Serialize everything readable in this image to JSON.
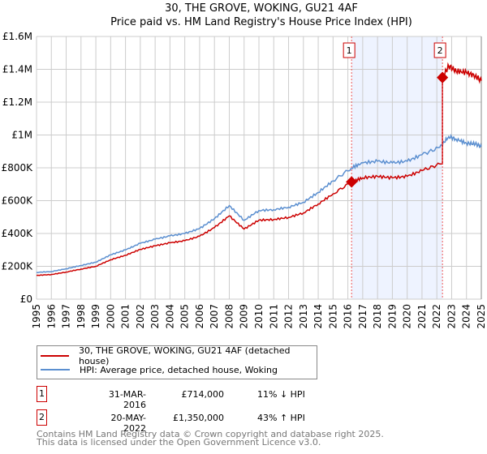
{
  "chart_data": {
    "type": "line",
    "title": [
      "30, THE GROVE, WOKING, GU21 4AF",
      "Price paid vs. HM Land Registry's House Price Index (HPI)"
    ],
    "xlim": [
      1995,
      2025
    ],
    "ylim": [
      0,
      1600000
    ],
    "x_ticks": [
      "1995",
      "1996",
      "1997",
      "1998",
      "1999",
      "2000",
      "2001",
      "2002",
      "2003",
      "2004",
      "2005",
      "2006",
      "2007",
      "2008",
      "2009",
      "2010",
      "2011",
      "2012",
      "2013",
      "2014",
      "2015",
      "2016",
      "2017",
      "2018",
      "2019",
      "2020",
      "2021",
      "2022",
      "2023",
      "2024",
      "2025"
    ],
    "y_ticks": [
      {
        "v": 0,
        "label": "£0"
      },
      {
        "v": 200000,
        "label": "£200K"
      },
      {
        "v": 400000,
        "label": "£400K"
      },
      {
        "v": 600000,
        "label": "£600K"
      },
      {
        "v": 800000,
        "label": "£800K"
      },
      {
        "v": 1000000,
        "label": "£1M"
      },
      {
        "v": 1200000,
        "label": "£1.2M"
      },
      {
        "v": 1400000,
        "label": "£1.4M"
      },
      {
        "v": 1600000,
        "label": "£1.6M"
      }
    ],
    "grid": true,
    "series": [
      {
        "name": "30, THE GROVE, WOKING, GU21 4AF (detached house)",
        "color": "#cc0000",
        "x": [
          1995,
          1996,
          1997,
          1998,
          1999,
          2000,
          2001,
          2002,
          2003,
          2004,
          2005,
          2006,
          2007,
          2008,
          2009,
          2010,
          2011,
          2012,
          2013,
          2014,
          2015,
          2016.25,
          2017,
          2018,
          2019,
          2020,
          2021,
          2022.2,
          2022.38,
          2022.38,
          2022.8,
          2023.3,
          2024,
          2024.6,
          2025
        ],
        "y": [
          145000,
          150000,
          165000,
          183000,
          200000,
          240000,
          267000,
          303000,
          325000,
          343000,
          356000,
          383000,
          436000,
          507000,
          427000,
          481000,
          485000,
          498000,
          525000,
          580000,
          641000,
          714000,
          739000,
          748000,
          739000,
          748000,
          783000,
          823000,
          823000,
          1350000,
          1420000,
          1390000,
          1380000,
          1360000,
          1330000
        ]
      },
      {
        "name": "HPI: Average price, detached house, Woking",
        "color": "#5b8fd0",
        "x": [
          1995,
          1996,
          1997,
          1998,
          1999,
          2000,
          2001,
          2002,
          2003,
          2004,
          2005,
          2006,
          2007,
          2008,
          2009,
          2010,
          2011,
          2012,
          2013,
          2014,
          2015,
          2016.25,
          2017,
          2018,
          2019,
          2020,
          2021,
          2022.2,
          2022.8,
          2023.3,
          2024,
          2024.6,
          2025
        ],
        "y": [
          163000,
          168000,
          185000,
          205000,
          225000,
          270000,
          300000,
          340000,
          365000,
          385000,
          400000,
          430000,
          490000,
          570000,
          480000,
          540000,
          545000,
          560000,
          590000,
          650000,
          720000,
          800000,
          830000,
          840000,
          830000,
          840000,
          880000,
          925000,
          990000,
          975000,
          950000,
          945000,
          930000
        ]
      }
    ],
    "sales": [
      {
        "label": "1",
        "x": 2016.25,
        "y": 714000
      },
      {
        "label": "2",
        "x": 2022.38,
        "y": 1350000
      }
    ],
    "shaded_range": [
      2016.25,
      2022.38
    ]
  },
  "legend": [
    {
      "label": "30, THE GROVE, WOKING, GU21 4AF (detached house)",
      "color": "#cc0000"
    },
    {
      "label": "HPI: Average price, detached house, Woking",
      "color": "#5b8fd0"
    }
  ],
  "sales_table": [
    {
      "num": "1",
      "date": "31-MAR-2016",
      "price": "£714,000",
      "hpi": "11% ↓ HPI"
    },
    {
      "num": "2",
      "date": "20-MAY-2022",
      "price": "£1,350,000",
      "hpi": "43% ↑ HPI"
    }
  ],
  "footer": [
    "Contains HM Land Registry data © Crown copyright and database right 2025.",
    "This data is licensed under the Open Government Licence v3.0."
  ]
}
